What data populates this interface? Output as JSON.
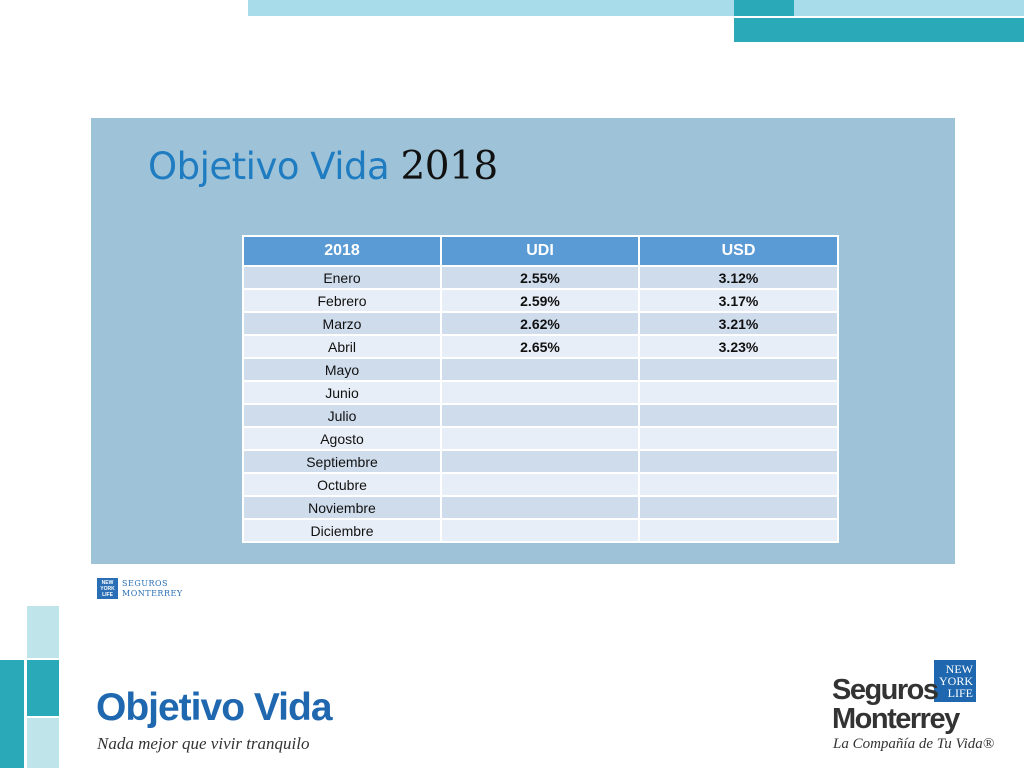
{
  "slide": {
    "title_text": "Objetivo Vida",
    "title_year": "2018"
  },
  "table": {
    "headers": [
      "2018",
      "UDI",
      "USD"
    ],
    "rows": [
      {
        "month": "Enero",
        "udi": "2.55%",
        "usd": "3.12%"
      },
      {
        "month": "Febrero",
        "udi": "2.59%",
        "usd": "3.17%"
      },
      {
        "month": "Marzo",
        "udi": "2.62%",
        "usd": "3.21%"
      },
      {
        "month": "Abril",
        "udi": "2.65%",
        "usd": "3.23%"
      },
      {
        "month": "Mayo",
        "udi": "",
        "usd": ""
      },
      {
        "month": "Junio",
        "udi": "",
        "usd": ""
      },
      {
        "month": "Julio",
        "udi": "",
        "usd": ""
      },
      {
        "month": "Agosto",
        "udi": "",
        "usd": ""
      },
      {
        "month": "Septiembre",
        "udi": "",
        "usd": ""
      },
      {
        "month": "Octubre",
        "udi": "",
        "usd": ""
      },
      {
        "month": "Noviembre",
        "udi": "",
        "usd": ""
      },
      {
        "month": "Diciembre",
        "udi": "",
        "usd": ""
      }
    ]
  },
  "small_logo": {
    "box_text": [
      "NEW",
      "YORK",
      "LIFE"
    ],
    "name_line1": "SEGUROS",
    "name_line2": "MONTERREY"
  },
  "footer_left": {
    "title": "Objetivo Vida",
    "tagline": "Nada mejor que vivir tranquilo"
  },
  "footer_right": {
    "box_text": [
      "NEW",
      "YORK",
      "LIFE"
    ],
    "name_line1": "Seguros",
    "name_line2": "Monterrey",
    "tagline": "La Compañía de Tu Vida®"
  },
  "colors": {
    "accent_teal": "#2aa9b8",
    "light_teal": "#a9dcea",
    "panel_blue": "#9ec3d8",
    "header_blue": "#5b9bd5",
    "brand_blue": "#1f68b0"
  }
}
